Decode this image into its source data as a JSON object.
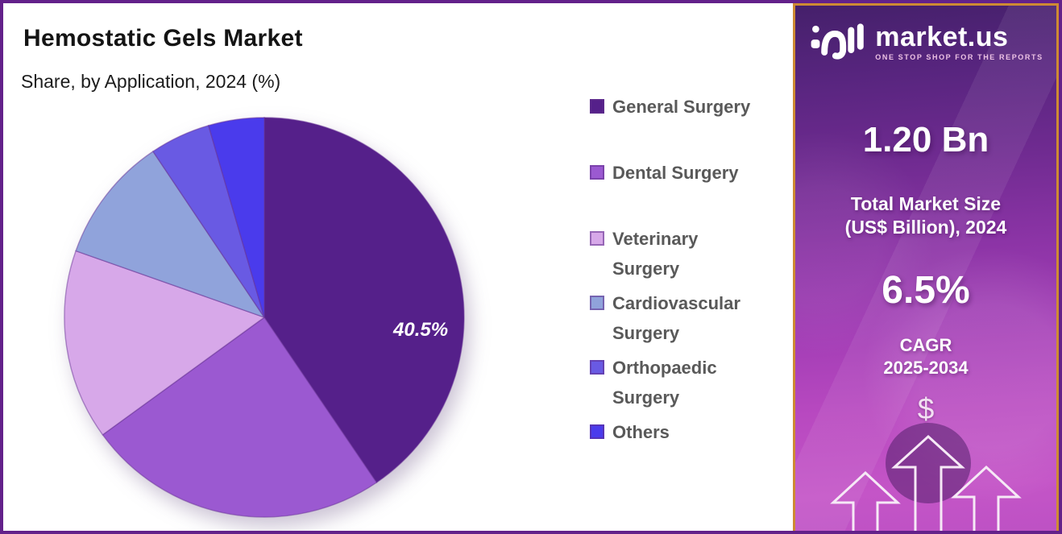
{
  "header": {
    "title": "Hemostatic Gels Market",
    "subtitle": "Share, by Application, 2024 (%)"
  },
  "chart_data": {
    "type": "pie",
    "title": "Hemostatic Gels Market",
    "subtitle": "Share, by Application, 2024 (%)",
    "unit": "%",
    "categories": [
      "General Surgery",
      "Dental Surgery",
      "Veterinary Surgery",
      "Cardiovascular Surgery",
      "Orthopaedic Surgery",
      "Others"
    ],
    "values": [
      40.5,
      24.5,
      15.4,
      10.2,
      4.9,
      4.5
    ],
    "colors": [
      "#55208a",
      "#9b59d1",
      "#d7a8e9",
      "#90a3db",
      "#695ae3",
      "#4a3bec"
    ],
    "data_label": "40.5%",
    "labeled_slice": "General Surgery",
    "start_angle_deg": 0,
    "direction": "clockwise",
    "legend_position": "right"
  },
  "legend": {
    "items": [
      {
        "label": "General Surgery",
        "lines": [
          "General Surgery"
        ],
        "color": "#55208a"
      },
      {
        "label": "Dental Surgery",
        "lines": [
          "Dental Surgery"
        ],
        "color": "#9b59d1"
      },
      {
        "label": "Veterinary Surgery",
        "lines": [
          "Veterinary",
          "Surgery"
        ],
        "color": "#d7a8e9"
      },
      {
        "label": "Cardiovascular Surgery",
        "lines": [
          "Cardiovascular",
          "Surgery"
        ],
        "color": "#90a3db"
      },
      {
        "label": "Orthopaedic Surgery",
        "lines": [
          "Orthopaedic",
          "Surgery"
        ],
        "color": "#695ae3"
      },
      {
        "label": "Others",
        "lines": [
          "Others"
        ],
        "color": "#4a3bec"
      }
    ]
  },
  "sidebar": {
    "brand": {
      "name": "market.us",
      "tagline": "ONE STOP SHOP FOR THE REPORTS"
    },
    "market_size": {
      "value": "1.20 Bn",
      "label_line1": "Total Market Size",
      "label_line2": "(US$ Billion), 2024"
    },
    "cagr": {
      "value": "6.5%",
      "label_line1": "CAGR",
      "label_line2": "2025-2034"
    },
    "currency_symbol": "$",
    "accent_border_color": "#ce8a33"
  }
}
